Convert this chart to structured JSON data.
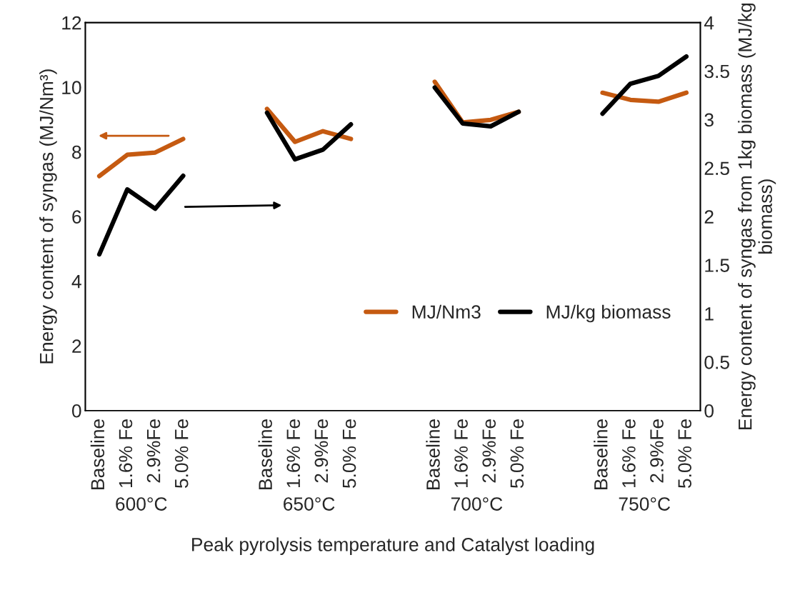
{
  "chart_data": {
    "type": "line",
    "categories": [
      "Baseline",
      "1.6% Fe",
      "2.9%Fe",
      "5.0% Fe",
      null,
      null,
      "Baseline",
      "1.6% Fe",
      "2.9%Fe",
      "5.0% Fe",
      null,
      null,
      "Baseline",
      "1.6% Fe",
      "2.9%Fe",
      "5.0% Fe",
      null,
      null,
      "Baseline",
      "1.6% Fe",
      "2.9%Fe",
      "5.0% Fe"
    ],
    "series": [
      {
        "name": "MJ/Nm3",
        "color": "#c55a11",
        "values": [
          7.25,
          7.91,
          7.98,
          8.4,
          null,
          null,
          9.33,
          8.31,
          8.64,
          8.4,
          null,
          null,
          10.17,
          8.91,
          8.99,
          9.24,
          null,
          null,
          9.83,
          9.61,
          9.55,
          9.83
        ]
      },
      {
        "name": "MJ/kg biomass",
        "color": "#000000",
        "axis": "y2",
        "values": [
          1.61,
          2.28,
          2.08,
          2.42,
          null,
          null,
          3.07,
          2.59,
          2.69,
          2.95,
          null,
          null,
          3.33,
          2.96,
          2.93,
          3.08,
          null,
          null,
          3.06,
          3.37,
          3.45,
          3.65
        ]
      }
    ],
    "xlabel": "Peak pyrolysis temperature and Catalyst loading",
    "ylabel": "Energy content of syngas (MJ/Nm³)",
    "y2label": "Energy content of syngas from 1kg biomass (MJ/kg biomass)",
    "annotations": [
      "600°C",
      "650°C",
      "700°C",
      "750°C"
    ],
    "ylim": [
      0,
      12
    ],
    "yticks": [
      0,
      2,
      4,
      6,
      8,
      10,
      12
    ],
    "y2lim": [
      0,
      4
    ],
    "y2ticks": [
      0,
      0.5,
      1,
      1.5,
      2,
      2.5,
      3,
      3.5,
      4
    ],
    "grid": false,
    "legend": "center right",
    "marker": "none",
    "line_style": "solid"
  }
}
